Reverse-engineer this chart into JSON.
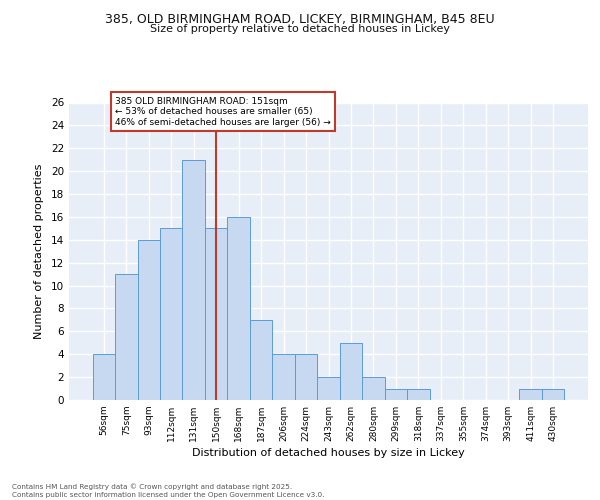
{
  "title1": "385, OLD BIRMINGHAM ROAD, LICKEY, BIRMINGHAM, B45 8EU",
  "title2": "Size of property relative to detached houses in Lickey",
  "xlabel": "Distribution of detached houses by size in Lickey",
  "ylabel": "Number of detached properties",
  "bin_labels": [
    "56sqm",
    "75sqm",
    "93sqm",
    "112sqm",
    "131sqm",
    "150sqm",
    "168sqm",
    "187sqm",
    "206sqm",
    "224sqm",
    "243sqm",
    "262sqm",
    "280sqm",
    "299sqm",
    "318sqm",
    "337sqm",
    "355sqm",
    "374sqm",
    "393sqm",
    "411sqm",
    "430sqm"
  ],
  "bar_values": [
    4,
    11,
    14,
    15,
    21,
    15,
    16,
    7,
    4,
    4,
    2,
    5,
    2,
    1,
    1,
    0,
    0,
    0,
    0,
    1,
    1
  ],
  "bar_color": "#c6d9f0",
  "bar_edgecolor": "#5b9bd5",
  "vline_x_index": 5,
  "vline_color": "#c0392b",
  "annotation_box_text": "385 OLD BIRMINGHAM ROAD: 151sqm\n← 53% of detached houses are smaller (65)\n46% of semi-detached houses are larger (56) →",
  "annotation_box_color": "#c0392b",
  "ylim": [
    0,
    26
  ],
  "yticks": [
    0,
    2,
    4,
    6,
    8,
    10,
    12,
    14,
    16,
    18,
    20,
    22,
    24,
    26
  ],
  "background_color": "#e8eef8",
  "grid_color": "#ffffff",
  "footer_text": "Contains HM Land Registry data © Crown copyright and database right 2025.\nContains public sector information licensed under the Open Government Licence v3.0.",
  "figsize": [
    6.0,
    5.0
  ],
  "dpi": 100
}
